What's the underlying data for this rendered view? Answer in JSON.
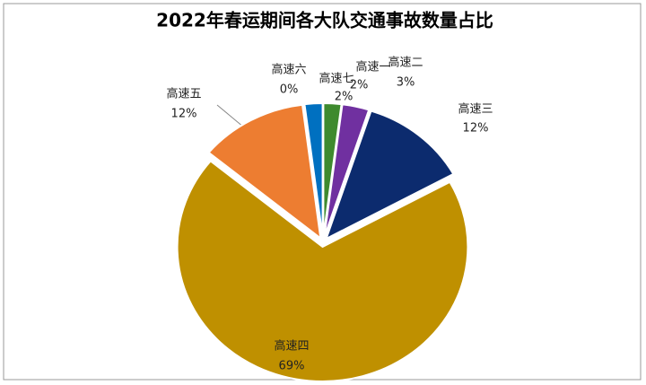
{
  "chart_data": {
    "type": "pie",
    "title": "2022年春运期间各大队交通事故数量占比",
    "categories": [
      "高速一",
      "高速二",
      "高速三",
      "高速四",
      "高速五",
      "高速六",
      "高速七"
    ],
    "values": [
      2,
      3,
      12,
      69,
      12,
      0,
      2
    ],
    "value_labels": [
      "2%",
      "3%",
      "12%",
      "69%",
      "12%",
      "0%",
      "2%"
    ],
    "colors": [
      "#3e8a2e",
      "#7030a0",
      "#0c2b6e",
      "#bf9000",
      "#ed7d31",
      "#c00000",
      "#0070c0"
    ]
  }
}
